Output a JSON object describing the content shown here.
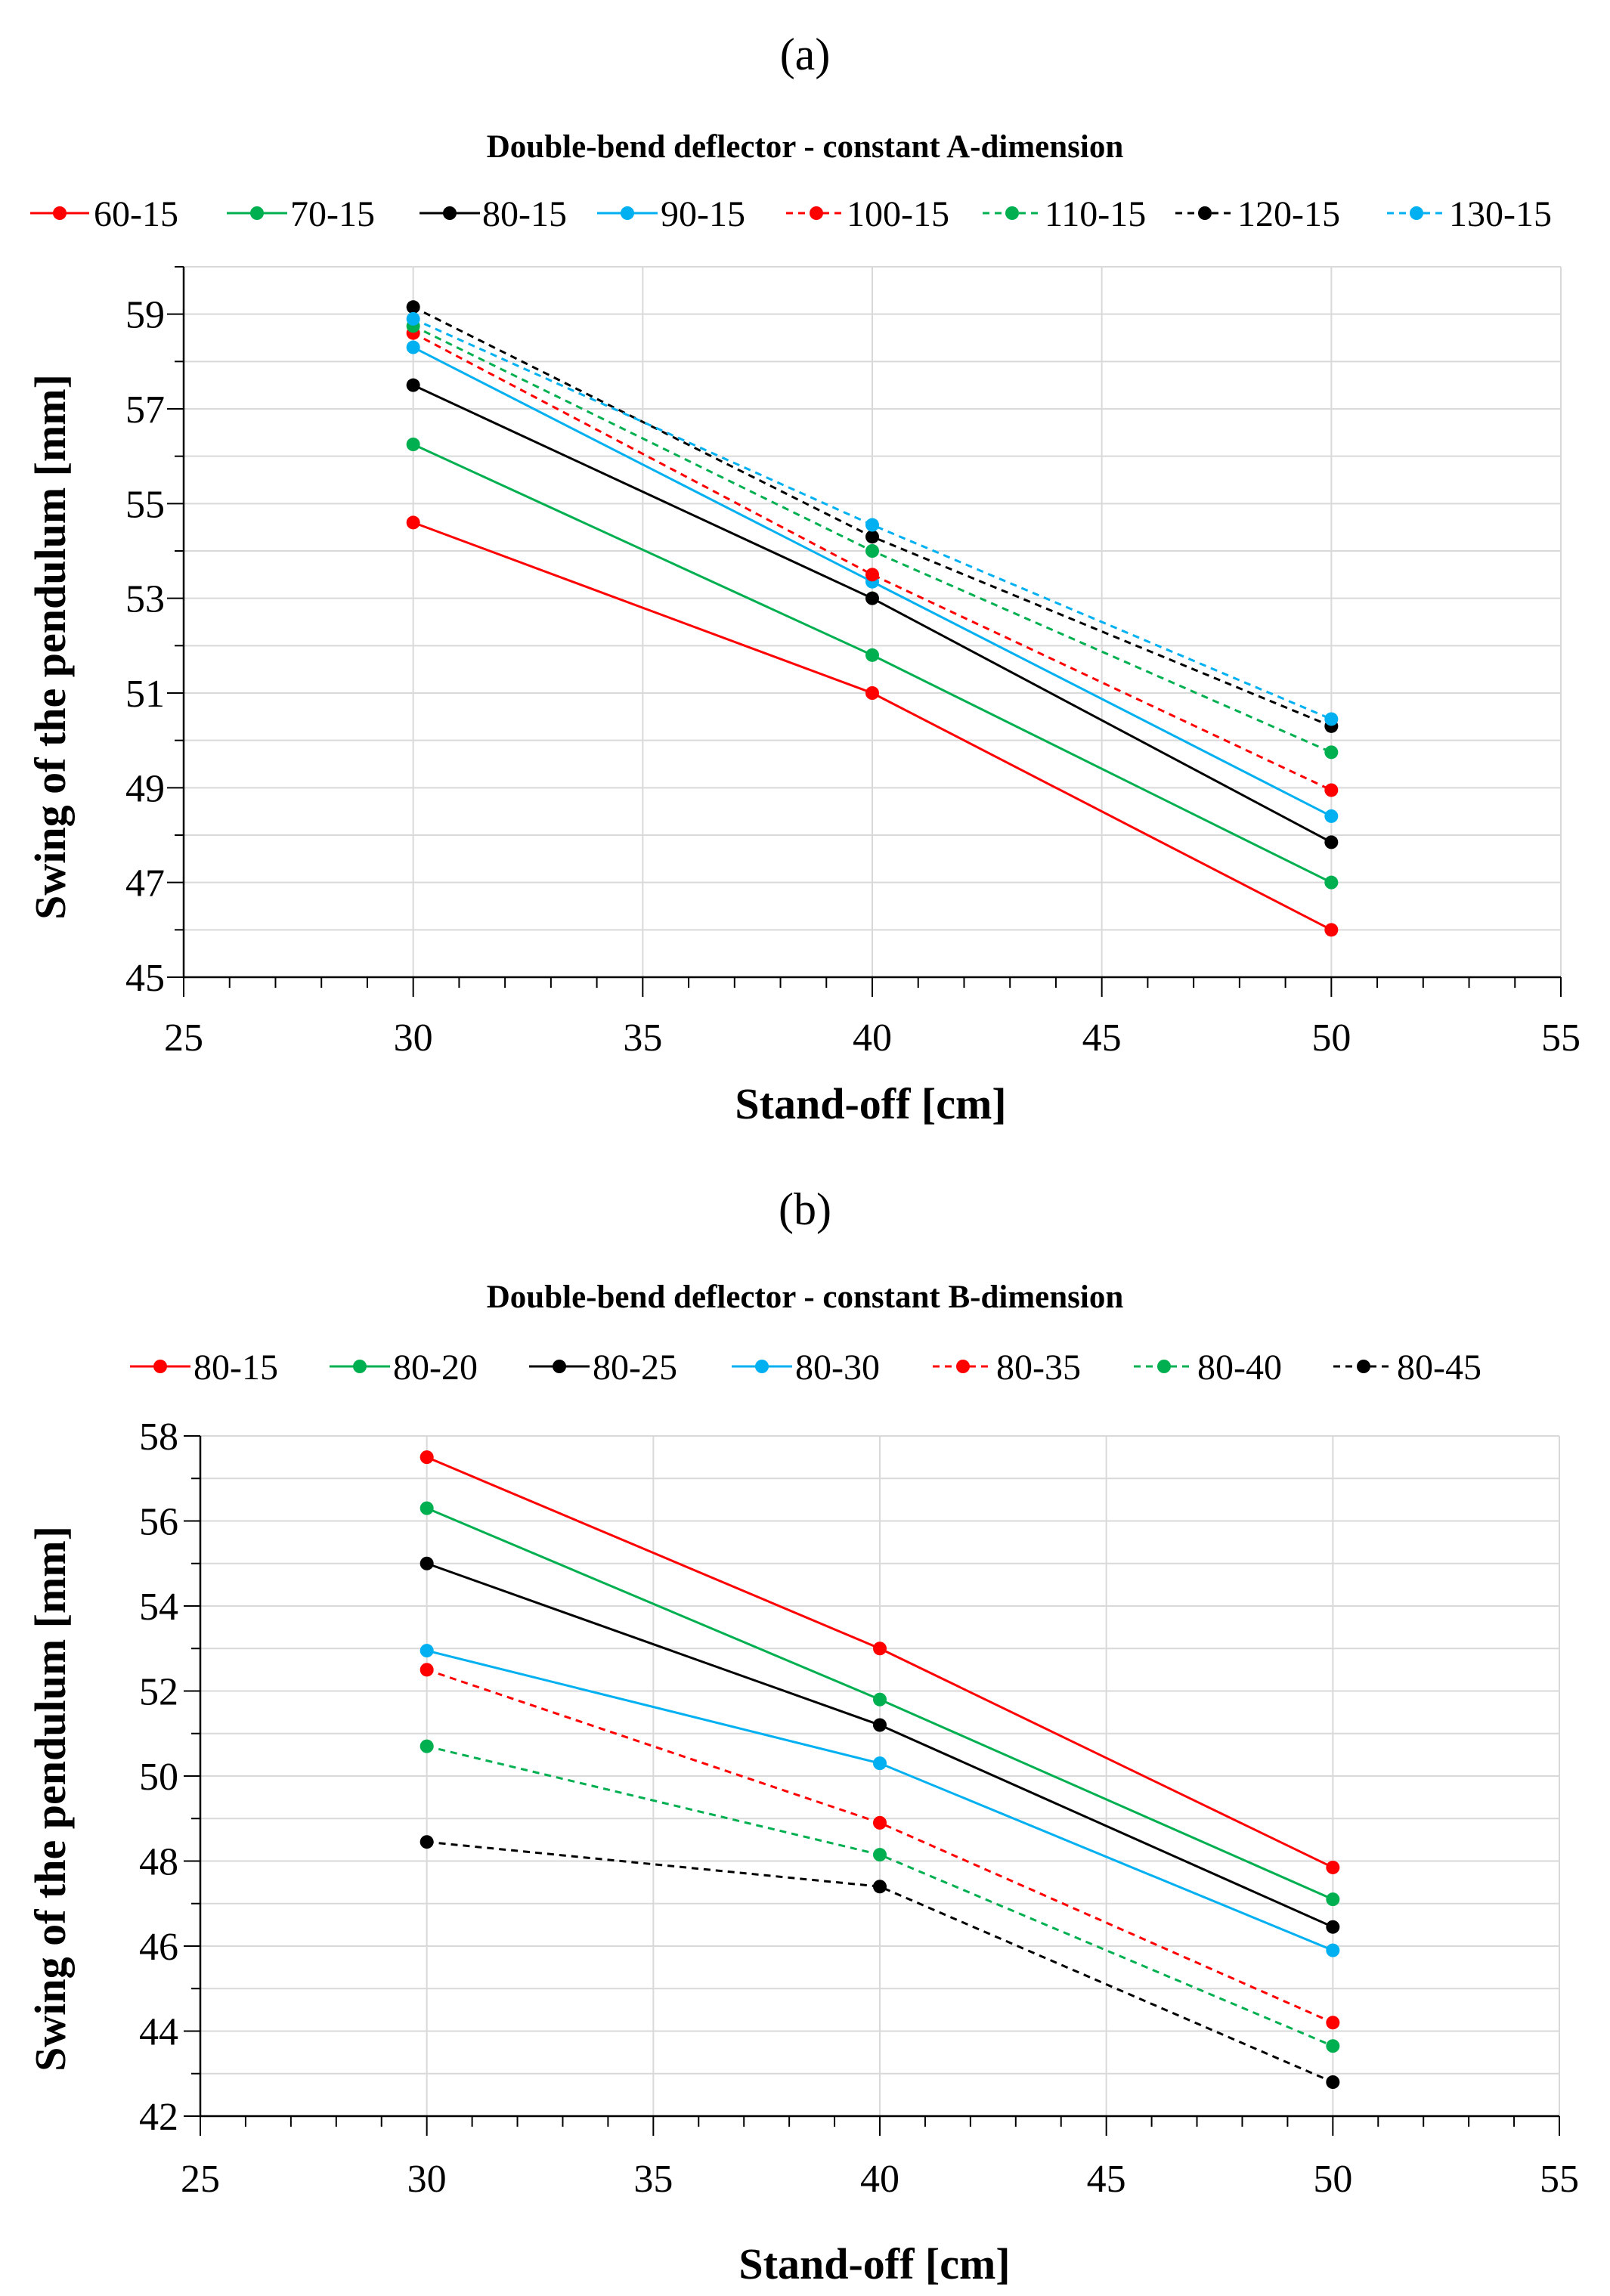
{
  "figure": {
    "panels": [
      "(a)",
      "(b)"
    ]
  },
  "chart_data": [
    {
      "type": "line",
      "panel_label": "(a)",
      "title": "Double-bend deflector - constant A-dimension",
      "xlabel": "Stand-off [cm]",
      "ylabel": "Swing of the pendulum [mm]",
      "xlim": [
        25,
        55
      ],
      "ylim": [
        45,
        60
      ],
      "xticks": [
        25,
        30,
        35,
        40,
        45,
        50,
        55
      ],
      "yticks": [
        45,
        47,
        49,
        51,
        53,
        55,
        57,
        59
      ],
      "grid": true,
      "legend_position": "top",
      "x": [
        30,
        40,
        50
      ],
      "series": [
        {
          "name": "60-15",
          "color": "#ff0000",
          "dashed": false,
          "values": [
            54.6,
            51.0,
            46.0
          ]
        },
        {
          "name": "70-15",
          "color": "#00b050",
          "dashed": false,
          "values": [
            56.25,
            51.8,
            47.0
          ]
        },
        {
          "name": "80-15",
          "color": "#000000",
          "dashed": false,
          "values": [
            57.5,
            53.0,
            47.85
          ]
        },
        {
          "name": "90-15",
          "color": "#00b0f0",
          "dashed": false,
          "values": [
            58.3,
            53.35,
            48.4
          ]
        },
        {
          "name": "100-15",
          "color": "#ff0000",
          "dashed": true,
          "values": [
            58.6,
            53.5,
            48.95
          ]
        },
        {
          "name": "110-15",
          "color": "#00b050",
          "dashed": true,
          "values": [
            58.75,
            54.0,
            49.75
          ]
        },
        {
          "name": "120-15",
          "color": "#000000",
          "dashed": true,
          "values": [
            59.15,
            54.3,
            50.3
          ]
        },
        {
          "name": "130-15",
          "color": "#00b0f0",
          "dashed": true,
          "values": [
            58.9,
            54.55,
            50.45
          ]
        }
      ]
    },
    {
      "type": "line",
      "panel_label": "(b)",
      "title": "Double-bend deflector - constant B-dimension",
      "xlabel": "Stand-off [cm]",
      "ylabel": "Swing of the pendulum [mm]",
      "xlim": [
        25,
        55
      ],
      "ylim": [
        42,
        58
      ],
      "xticks": [
        25,
        30,
        35,
        40,
        45,
        50,
        55
      ],
      "yticks": [
        42,
        44,
        46,
        48,
        50,
        52,
        54,
        56,
        58
      ],
      "grid": true,
      "legend_position": "top",
      "x": [
        30,
        40,
        50
      ],
      "series": [
        {
          "name": "80-15",
          "color": "#ff0000",
          "dashed": false,
          "values": [
            57.5,
            53.0,
            47.85
          ]
        },
        {
          "name": "80-20",
          "color": "#00b050",
          "dashed": false,
          "values": [
            56.3,
            51.8,
            47.1
          ]
        },
        {
          "name": "80-25",
          "color": "#000000",
          "dashed": false,
          "values": [
            55.0,
            51.2,
            46.45
          ]
        },
        {
          "name": "80-30",
          "color": "#00b0f0",
          "dashed": false,
          "values": [
            52.95,
            50.3,
            45.9
          ]
        },
        {
          "name": "80-35",
          "color": "#ff0000",
          "dashed": true,
          "values": [
            52.5,
            48.9,
            44.2
          ]
        },
        {
          "name": "80-40",
          "color": "#00b050",
          "dashed": true,
          "values": [
            50.7,
            48.15,
            43.65
          ]
        },
        {
          "name": "80-45",
          "color": "#000000",
          "dashed": true,
          "values": [
            48.45,
            47.4,
            42.8
          ]
        }
      ]
    }
  ]
}
